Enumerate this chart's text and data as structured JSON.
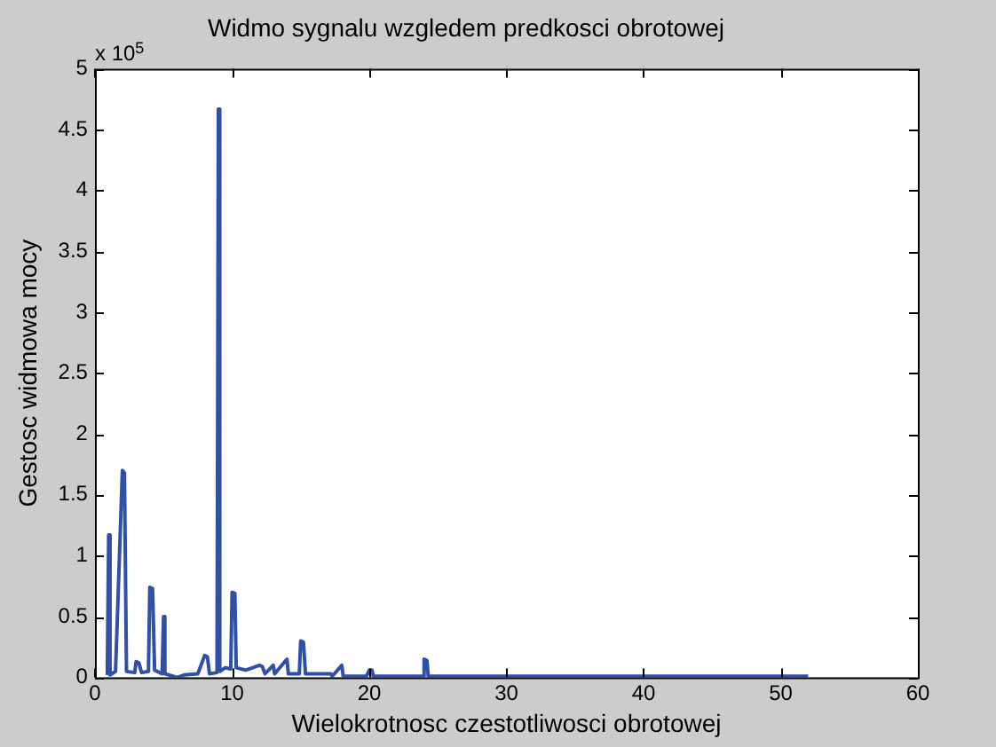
{
  "chart_data": {
    "type": "line",
    "title": "Widmo sygnalu wzgledem predkosci obrotowej",
    "xlabel": "Wielokrotnosc czestotliwosci obrotowej",
    "ylabel": "Gestosc widmowa mocy",
    "annotations": [
      "x 10$^{5}$"
    ],
    "series": [
      {
        "color": "#2f4fa8",
        "x": [
          0.9,
          1,
          1.1,
          1.5,
          2,
          2.15,
          2.3,
          2.9,
          3,
          3.2,
          3.4,
          3.9,
          4,
          4.2,
          4.35,
          4.9,
          5,
          5.1,
          6,
          6.5,
          7.5,
          8,
          8.2,
          8.35,
          8.9,
          9,
          9.1,
          9.5,
          9.9,
          10,
          10.2,
          10.3,
          11,
          12,
          12.2,
          12.4,
          13,
          13.1,
          14,
          14.1,
          14.9,
          15,
          15.2,
          15.35,
          17.2,
          17.3,
          18,
          18.1,
          19.8,
          20,
          20.2,
          20.3,
          23.9,
          24,
          24.2,
          24.3,
          52
        ],
        "values": [
          0.02,
          1.17,
          0.02,
          0.05,
          1.7,
          1.68,
          0.05,
          0.04,
          0.13,
          0.12,
          0.04,
          0.05,
          0.74,
          0.73,
          0.06,
          0.03,
          0.5,
          0.03,
          0.0,
          0.02,
          0.03,
          0.18,
          0.17,
          0.03,
          0.04,
          4.67,
          0.05,
          0.08,
          0.07,
          0.7,
          0.69,
          0.08,
          0.06,
          0.1,
          0.09,
          0.03,
          0.1,
          0.03,
          0.15,
          0.03,
          0.03,
          0.3,
          0.29,
          0.03,
          0.03,
          0.01,
          0.1,
          0.01,
          0.01,
          0.06,
          0.06,
          0.01,
          0.01,
          0.15,
          0.14,
          0.01,
          0.01
        ]
      }
    ],
    "xlim": [
      0,
      60
    ],
    "xticks": [
      0,
      10,
      20,
      30,
      40,
      50,
      60
    ],
    "ylim": [
      0,
      5
    ],
    "yticks": [
      0,
      0.5,
      1,
      1.5,
      2,
      2.5,
      3,
      3.5,
      4,
      4.5,
      5
    ],
    "grid": false,
    "legend": false,
    "marker": "none",
    "line_style": "solid"
  }
}
